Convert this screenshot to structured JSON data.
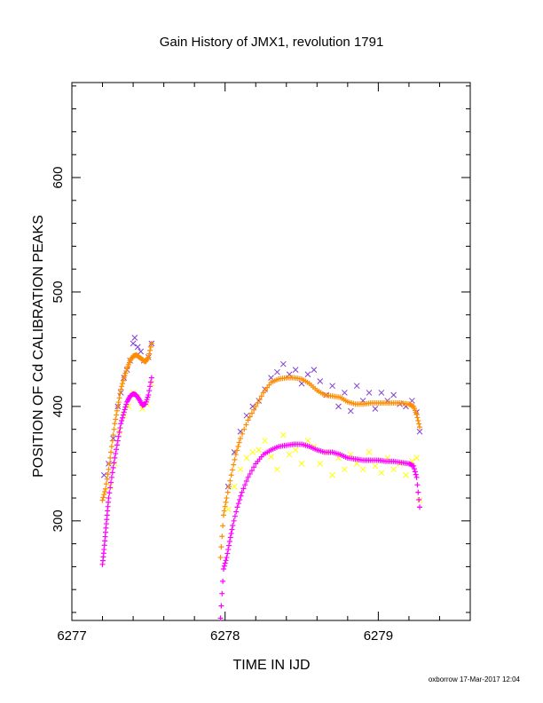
{
  "chart_data": {
    "type": "scatter",
    "title": "Gain History of JMX1, revolution 1791",
    "xlabel": "TIME IN IJD",
    "ylabel": "POSITION OF Cd CALIBRATION PEAKS",
    "footer": "oxborrow 17-Mar-2017 12:04",
    "xlim": [
      6277.0,
      6279.6
    ],
    "ylim": [
      213,
      683
    ],
    "x_ticks": [
      {
        "v": 6277,
        "label": "6277"
      },
      {
        "v": 6278,
        "label": "6278"
      },
      {
        "v": 6279,
        "label": "6279"
      }
    ],
    "y_ticks": [
      {
        "v": 300,
        "label": "300"
      },
      {
        "v": 400,
        "label": "400"
      },
      {
        "v": 500,
        "label": "500"
      },
      {
        "v": 600,
        "label": "600"
      }
    ],
    "grid": false,
    "colors": {
      "purple": "#7f3fd2",
      "orange": "#ff8c00",
      "yellow": "#ffff00",
      "magenta": "#ff00ff"
    },
    "series": [
      {
        "color": "#7f3fd2",
        "marker": "x",
        "style": "scatter",
        "points": [
          [
            6277.21,
            340
          ],
          [
            6277.24,
            350
          ],
          [
            6277.27,
            372
          ],
          [
            6277.3,
            400
          ],
          [
            6277.32,
            412
          ],
          [
            6277.34,
            425
          ],
          [
            6277.36,
            432
          ],
          [
            6277.38,
            440
          ],
          [
            6277.4,
            455
          ],
          [
            6277.41,
            460
          ],
          [
            6277.43,
            452
          ],
          [
            6277.45,
            448
          ],
          [
            6277.47,
            440
          ],
          [
            6277.5,
            443
          ],
          [
            6277.52,
            455
          ],
          [
            6278.02,
            330
          ],
          [
            6278.06,
            360
          ],
          [
            6278.1,
            378
          ],
          [
            6278.14,
            392
          ],
          [
            6278.18,
            400
          ],
          [
            6278.22,
            405
          ],
          [
            6278.26,
            415
          ],
          [
            6278.3,
            425
          ],
          [
            6278.34,
            430
          ],
          [
            6278.38,
            437
          ],
          [
            6278.42,
            428
          ],
          [
            6278.46,
            432
          ],
          [
            6278.5,
            420
          ],
          [
            6278.54,
            428
          ],
          [
            6278.58,
            432
          ],
          [
            6278.62,
            422
          ],
          [
            6278.66,
            410
          ],
          [
            6278.7,
            418
          ],
          [
            6278.74,
            400
          ],
          [
            6278.78,
            412
          ],
          [
            6278.82,
            396
          ],
          [
            6278.86,
            418
          ],
          [
            6278.9,
            405
          ],
          [
            6278.94,
            412
          ],
          [
            6278.98,
            398
          ],
          [
            6279.02,
            412
          ],
          [
            6279.06,
            405
          ],
          [
            6279.1,
            410
          ],
          [
            6279.14,
            402
          ],
          [
            6279.18,
            400
          ],
          [
            6279.22,
            405
          ],
          [
            6279.25,
            395
          ],
          [
            6279.27,
            378
          ]
        ]
      },
      {
        "color": "#ff8c00",
        "marker": "+",
        "style": "dense",
        "points": [
          [
            6277.2,
            318
          ],
          [
            6277.22,
            328
          ],
          [
            6277.24,
            345
          ],
          [
            6277.26,
            365
          ],
          [
            6277.28,
            385
          ],
          [
            6277.3,
            400
          ],
          [
            6277.32,
            415
          ],
          [
            6277.34,
            425
          ],
          [
            6277.36,
            433
          ],
          [
            6277.38,
            440
          ],
          [
            6277.4,
            444
          ],
          [
            6277.42,
            445
          ],
          [
            6277.44,
            443
          ],
          [
            6277.46,
            441
          ],
          [
            6277.48,
            439
          ],
          [
            6277.5,
            443
          ],
          [
            6277.52,
            455
          ],
          [
            6277.97,
            268
          ],
          [
            6277.99,
            305
          ],
          [
            6278.01,
            320
          ],
          [
            6278.04,
            340
          ],
          [
            6278.07,
            358
          ],
          [
            6278.1,
            372
          ],
          [
            6278.15,
            388
          ],
          [
            6278.2,
            400
          ],
          [
            6278.25,
            412
          ],
          [
            6278.3,
            421
          ],
          [
            6278.35,
            424
          ],
          [
            6278.4,
            425
          ],
          [
            6278.45,
            425
          ],
          [
            6278.5,
            424
          ],
          [
            6278.55,
            420
          ],
          [
            6278.6,
            414
          ],
          [
            6278.65,
            410
          ],
          [
            6278.7,
            409
          ],
          [
            6278.75,
            408
          ],
          [
            6278.8,
            404
          ],
          [
            6278.85,
            402
          ],
          [
            6278.9,
            402
          ],
          [
            6278.95,
            403
          ],
          [
            6279.0,
            403
          ],
          [
            6279.05,
            403
          ],
          [
            6279.1,
            403
          ],
          [
            6279.15,
            403
          ],
          [
            6279.2,
            402
          ],
          [
            6279.23,
            400
          ],
          [
            6279.25,
            393
          ],
          [
            6279.27,
            382
          ]
        ]
      },
      {
        "color": "#ffff00",
        "marker": "x",
        "style": "scatter",
        "points": [
          [
            6277.25,
            330
          ],
          [
            6277.28,
            350
          ],
          [
            6277.31,
            378
          ],
          [
            6277.34,
            392
          ],
          [
            6277.37,
            400
          ],
          [
            6277.4,
            412
          ],
          [
            6277.43,
            408
          ],
          [
            6277.46,
            398
          ],
          [
            6277.49,
            402
          ],
          [
            6277.52,
            420
          ],
          [
            6278.02,
            310
          ],
          [
            6278.06,
            330
          ],
          [
            6278.1,
            345
          ],
          [
            6278.14,
            355
          ],
          [
            6278.18,
            360
          ],
          [
            6278.22,
            362
          ],
          [
            6278.26,
            370
          ],
          [
            6278.3,
            356
          ],
          [
            6278.34,
            345
          ],
          [
            6278.38,
            375
          ],
          [
            6278.42,
            358
          ],
          [
            6278.46,
            362
          ],
          [
            6278.5,
            350
          ],
          [
            6278.54,
            370
          ],
          [
            6278.58,
            365
          ],
          [
            6278.62,
            350
          ],
          [
            6278.66,
            360
          ],
          [
            6278.7,
            340
          ],
          [
            6278.74,
            355
          ],
          [
            6278.78,
            345
          ],
          [
            6278.82,
            358
          ],
          [
            6278.86,
            350
          ],
          [
            6278.9,
            345
          ],
          [
            6278.94,
            360
          ],
          [
            6278.98,
            348
          ],
          [
            6279.02,
            342
          ],
          [
            6279.06,
            355
          ],
          [
            6279.1,
            345
          ],
          [
            6279.14,
            350
          ],
          [
            6279.18,
            340
          ],
          [
            6279.22,
            352
          ],
          [
            6279.25,
            355
          ],
          [
            6279.27,
            318
          ]
        ]
      },
      {
        "color": "#ff00ff",
        "marker": "+",
        "style": "dense",
        "points": [
          [
            6277.2,
            262
          ],
          [
            6277.21,
            275
          ],
          [
            6277.22,
            290
          ],
          [
            6277.23,
            305
          ],
          [
            6277.24,
            320
          ],
          [
            6277.26,
            338
          ],
          [
            6277.28,
            355
          ],
          [
            6277.3,
            370
          ],
          [
            6277.32,
            385
          ],
          [
            6277.34,
            395
          ],
          [
            6277.36,
            404
          ],
          [
            6277.38,
            409
          ],
          [
            6277.4,
            411
          ],
          [
            6277.42,
            410
          ],
          [
            6277.44,
            406
          ],
          [
            6277.46,
            401
          ],
          [
            6277.48,
            402
          ],
          [
            6277.5,
            410
          ],
          [
            6277.52,
            425
          ],
          [
            6277.97,
            215
          ],
          [
            6277.99,
            258
          ],
          [
            6278.01,
            268
          ],
          [
            6278.03,
            282
          ],
          [
            6278.05,
            296
          ],
          [
            6278.08,
            312
          ],
          [
            6278.11,
            325
          ],
          [
            6278.15,
            338
          ],
          [
            6278.2,
            350
          ],
          [
            6278.25,
            358
          ],
          [
            6278.3,
            362
          ],
          [
            6278.35,
            365
          ],
          [
            6278.4,
            366
          ],
          [
            6278.45,
            367
          ],
          [
            6278.5,
            367
          ],
          [
            6278.55,
            365
          ],
          [
            6278.6,
            362
          ],
          [
            6278.65,
            360
          ],
          [
            6278.7,
            360
          ],
          [
            6278.75,
            358
          ],
          [
            6278.8,
            355
          ],
          [
            6278.85,
            354
          ],
          [
            6278.9,
            353
          ],
          [
            6278.95,
            353
          ],
          [
            6279.0,
            353
          ],
          [
            6279.05,
            352
          ],
          [
            6279.1,
            352
          ],
          [
            6279.15,
            351
          ],
          [
            6279.2,
            350
          ],
          [
            6279.23,
            348
          ],
          [
            6279.25,
            338
          ],
          [
            6279.27,
            312
          ]
        ]
      }
    ]
  }
}
